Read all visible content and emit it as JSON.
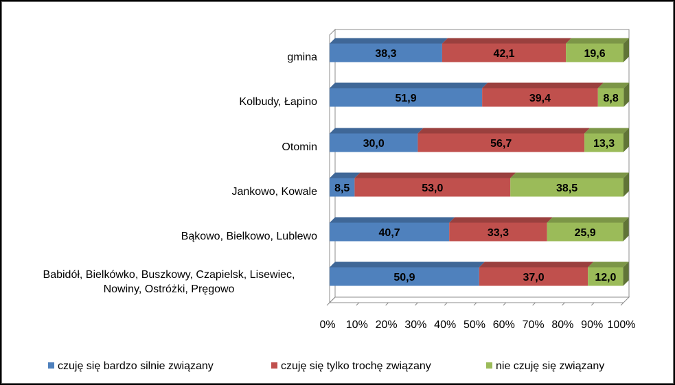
{
  "chart_data": {
    "type": "bar",
    "orientation": "horizontal",
    "stacked": "percent",
    "title": "",
    "xlabel": "",
    "ylabel": "",
    "xlim": [
      0,
      100
    ],
    "categories": [
      "gmina",
      "Kolbudy, Łapino",
      "Otomin",
      "Jankowo, Kowale",
      "Bąkowo, Bielkowo, Lublewo",
      "Babidół, Bielkówko, Buszkowy, Czapielsk, Lisewiec, Nowiny, Ostróżki, Pręgowo"
    ],
    "category_lines": [
      [
        "gmina"
      ],
      [
        "Kolbudy, Łapino"
      ],
      [
        "Otomin"
      ],
      [
        "Jankowo, Kowale"
      ],
      [
        "Bąkowo, Bielkowo, Lublewo"
      ],
      [
        "Babidół, Bielkówko, Buszkowy, Czapielsk, Lisewiec,",
        "Nowiny, Ostróżki, Pręgowo"
      ]
    ],
    "series": [
      {
        "name": "czuję się bardzo silnie związany",
        "color": "#4f81bd",
        "values": [
          38.3,
          51.9,
          30.0,
          8.5,
          40.7,
          50.9
        ],
        "labels": [
          "38,3",
          "51,9",
          "30,0",
          "8,5",
          "40,7",
          "50,9"
        ]
      },
      {
        "name": "czuję się tylko trochę związany",
        "color": "#c0504d",
        "values": [
          42.1,
          39.4,
          56.7,
          53.0,
          33.3,
          37.0
        ],
        "labels": [
          "42,1",
          "39,4",
          "56,7",
          "53,0",
          "33,3",
          "37,0"
        ]
      },
      {
        "name": "nie czuję się związany",
        "color": "#9bbb59",
        "values": [
          19.6,
          8.8,
          13.3,
          38.5,
          25.9,
          12.0
        ],
        "labels": [
          "19,6",
          "8,8",
          "13,3",
          "38,5",
          "25,9",
          "12,0"
        ]
      }
    ],
    "ticks": [
      "0%",
      "10%",
      "20%",
      "30%",
      "40%",
      "50%",
      "60%",
      "70%",
      "80%",
      "90%",
      "100%"
    ],
    "legend_position": "bottom"
  }
}
